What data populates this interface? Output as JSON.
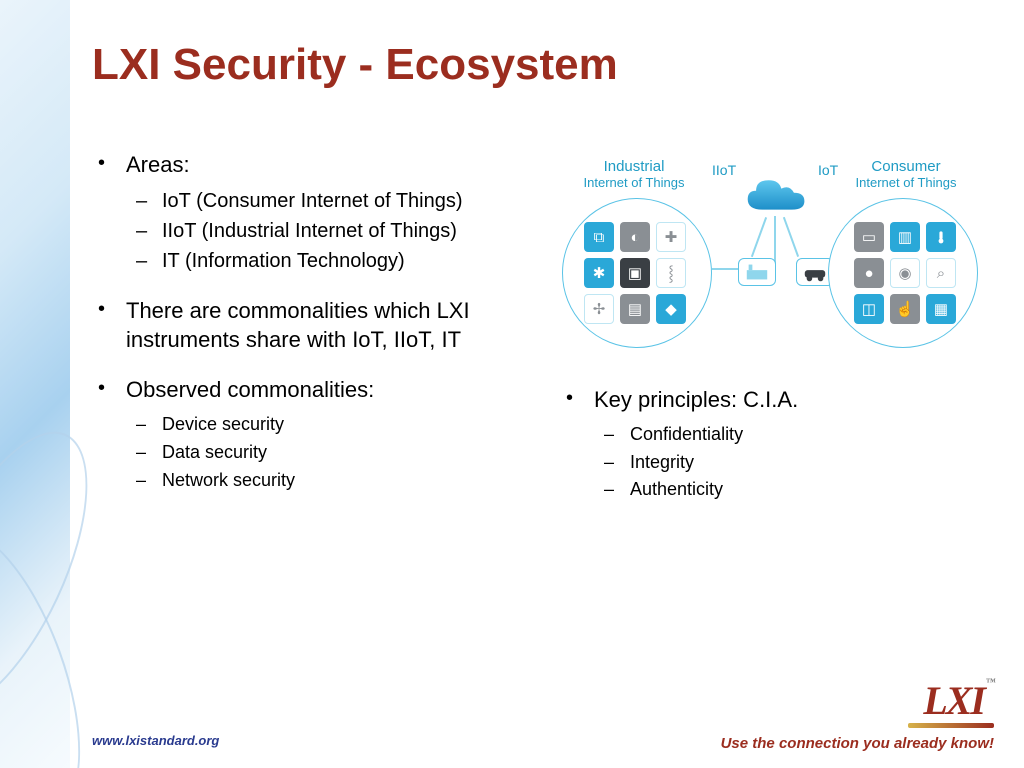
{
  "title": "LXI Security - Ecosystem",
  "colors": {
    "title": "#9b2d1f",
    "body_text": "#000000",
    "accent_blue": "#1f9bc4",
    "diagram_stroke": "#5ac3e6",
    "logo": "#9b2d1f",
    "footer_url": "#2a3b8f",
    "footer_tag": "#9b2d1f",
    "icon_blue": "#2aa8d8",
    "icon_gray": "#8a8f94",
    "background": "#ffffff"
  },
  "typography": {
    "title_fontsize_pt": 33,
    "bullet_fontsize_pt": 17,
    "subbullet_fontsize_pt": 15,
    "subbullet_small_fontsize_pt": 13,
    "diagram_label_fontsize_pt": 10,
    "font_family": "Arial"
  },
  "left_bullets": [
    {
      "text": "Areas:",
      "sub": [
        "IoT (Consumer Internet of Things)",
        "IIoT (Industrial Internet of Things)",
        "IT (Information Technology)"
      ],
      "sub_small": false
    },
    {
      "text": "There are commonalities which LXI instruments share with IoT, IIoT, IT",
      "sub": [],
      "sub_small": false
    },
    {
      "text": "Observed commonalities:",
      "sub": [
        "Device security",
        "Data security",
        "Network security"
      ],
      "sub_small": true
    }
  ],
  "right_bullets": [
    {
      "text": "Key principles: C.I.A.",
      "sub": [
        "Confidentiality",
        "Integrity",
        "Authenticity"
      ],
      "sub_small": true
    }
  ],
  "diagram": {
    "type": "infographic",
    "labels": {
      "industrial_title": "Industrial",
      "industrial_sub": "Internet of Things",
      "consumer_title": "Consumer",
      "consumer_sub": "Internet of Things",
      "iiot": "IIoT",
      "iot": "IoT"
    },
    "left_icons": [
      {
        "glyph": "⧉",
        "bg": "#2aa8d8",
        "fill": true
      },
      {
        "glyph": "◐",
        "bg": "#8a8f94",
        "fill": true
      },
      {
        "glyph": "✚",
        "bg": "#ffffff",
        "fill": false
      },
      {
        "glyph": "✱",
        "bg": "#2aa8d8",
        "fill": true
      },
      {
        "glyph": "▣",
        "bg": "#3a3f44",
        "fill": true
      },
      {
        "glyph": "⸾",
        "bg": "#ffffff",
        "fill": false
      },
      {
        "glyph": "✢",
        "bg": "#ffffff",
        "fill": false
      },
      {
        "glyph": "▤",
        "bg": "#8a8f94",
        "fill": true
      },
      {
        "glyph": "◆",
        "bg": "#2aa8d8",
        "fill": true
      }
    ],
    "right_icons": [
      {
        "glyph": "▭",
        "bg": "#8a8f94",
        "fill": true
      },
      {
        "glyph": "▥",
        "bg": "#2aa8d8",
        "fill": true
      },
      {
        "glyph": "temp",
        "bg": "#2aa8d8",
        "fill": true
      },
      {
        "glyph": "●",
        "bg": "#8a8f94",
        "fill": true
      },
      {
        "glyph": "◉",
        "bg": "#ffffff",
        "fill": false
      },
      {
        "glyph": "⌕",
        "bg": "#ffffff",
        "fill": false
      },
      {
        "glyph": "◫",
        "bg": "#2aa8d8",
        "fill": true
      },
      {
        "glyph": "☝",
        "bg": "#8a8f94",
        "fill": true
      },
      {
        "glyph": "▦",
        "bg": "#2aa8d8",
        "fill": true
      }
    ],
    "mid_nodes": [
      "factory-icon",
      "car-icon"
    ]
  },
  "footer": {
    "url": "www.lxistandard.org",
    "tagline": "Use the connection you already know!",
    "logo_text": "LXI",
    "logo_tm": "™"
  }
}
